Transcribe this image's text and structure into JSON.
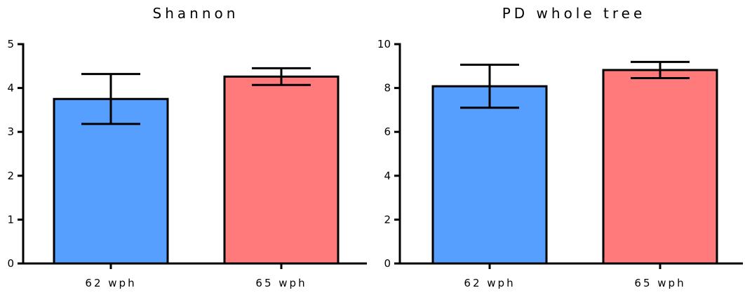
{
  "chart_data": [
    {
      "type": "bar",
      "title": "Shannon",
      "categories": [
        "62 wph",
        "65 wph"
      ],
      "values": [
        3.75,
        4.26
      ],
      "error": [
        0.57,
        0.19
      ],
      "ylim": [
        0,
        5
      ],
      "yticks": [
        0,
        1,
        2,
        3,
        4,
        5
      ],
      "xlabel": "",
      "ylabel": "",
      "grid": false,
      "colors": [
        "#569FFF",
        "#FF7A7A"
      ]
    },
    {
      "type": "bar",
      "title": "PD whole tree",
      "categories": [
        "62 wph",
        "65 wph"
      ],
      "values": [
        8.08,
        8.82
      ],
      "error": [
        0.98,
        0.37
      ],
      "ylim": [
        0,
        10
      ],
      "yticks": [
        0,
        2,
        4,
        6,
        8,
        10
      ],
      "xlabel": "",
      "ylabel": "",
      "grid": false,
      "colors": [
        "#569FFF",
        "#FF7A7A"
      ]
    }
  ]
}
